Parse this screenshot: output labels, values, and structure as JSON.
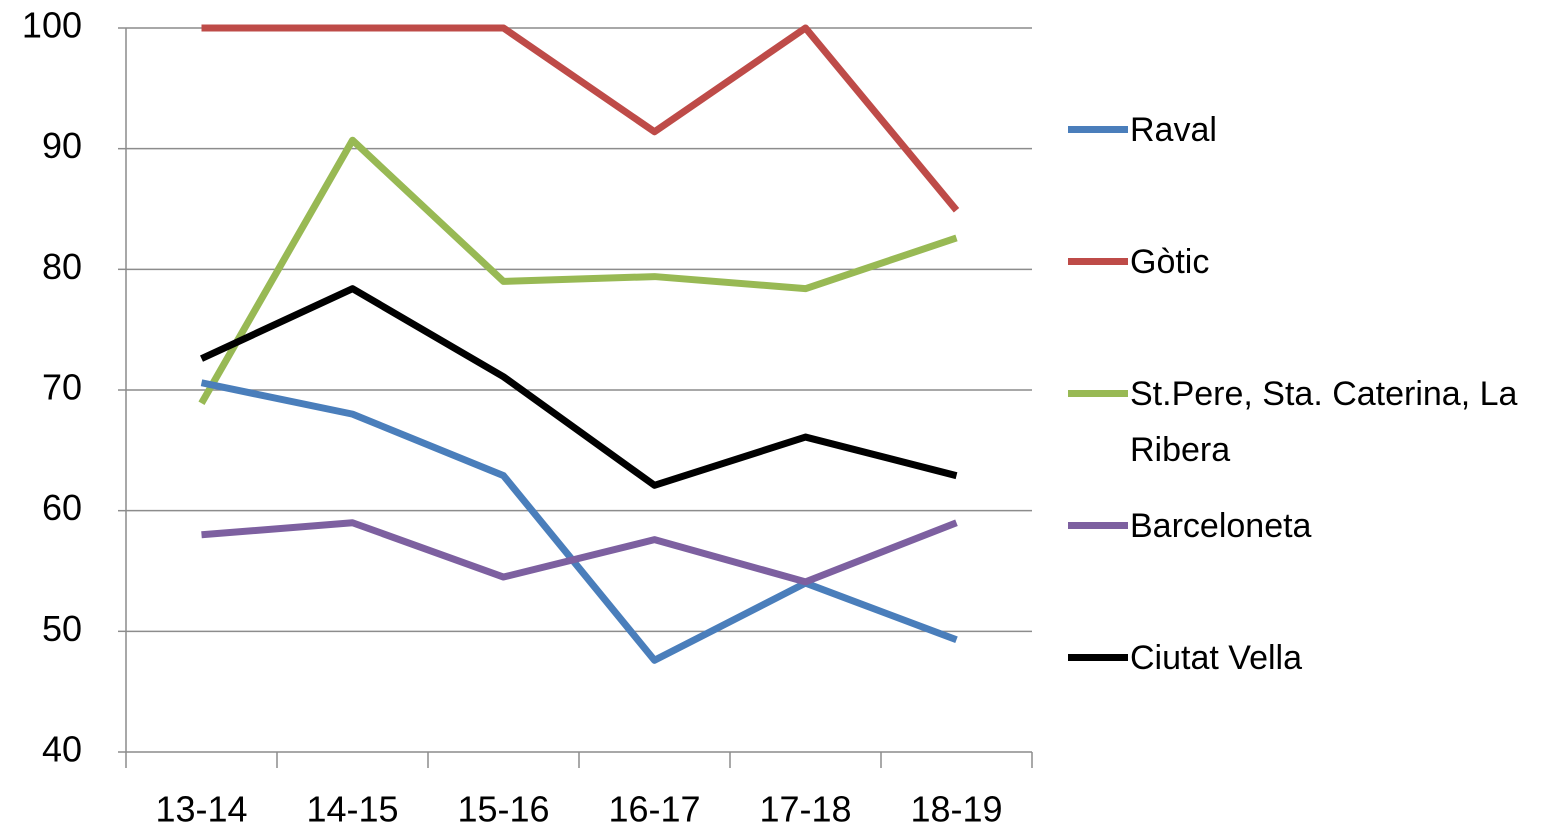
{
  "chart_data": {
    "type": "line",
    "categories": [
      "13-14",
      "14-15",
      "15-16",
      "16-17",
      "17-18",
      "18-19"
    ],
    "series": [
      {
        "name": "Raval",
        "color": "#4a7ebb",
        "values": [
          70.6,
          68,
          62.9,
          47.6,
          54,
          49.3
        ]
      },
      {
        "name": "Gòtic",
        "color": "#be4b48",
        "values": [
          100,
          100,
          100,
          91.4,
          100,
          84.9
        ]
      },
      {
        "name": "St.Pere, Sta. Caterina, La Ribera",
        "color": "#98b954",
        "values": [
          68.9,
          90.7,
          79,
          79.4,
          78.4,
          82.6
        ]
      },
      {
        "name": "Barceloneta",
        "color": "#7d60a0",
        "values": [
          58,
          59,
          54.5,
          57.6,
          54.1,
          59
        ]
      },
      {
        "name": "Ciutat  Vella",
        "color": "#000000",
        "values": [
          72.6,
          78.4,
          71.1,
          62.1,
          66.1,
          62.9
        ]
      }
    ],
    "ylim": [
      40,
      100
    ],
    "yticks": [
      40,
      50,
      60,
      70,
      80,
      90,
      100
    ],
    "grid": true,
    "legend": "right"
  }
}
